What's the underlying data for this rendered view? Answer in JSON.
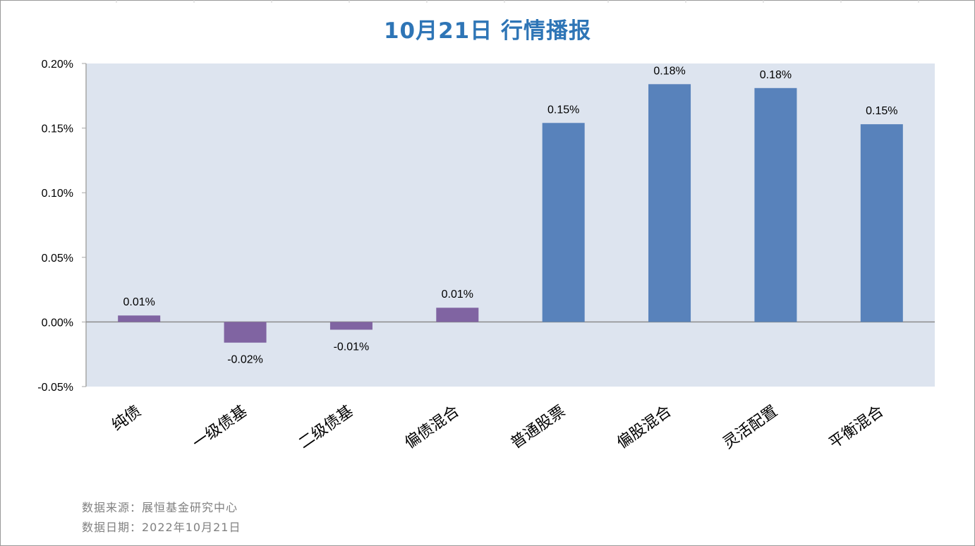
{
  "title": "10月21日  行情播报",
  "footnotes": {
    "source": "数据来源：展恒基金研究中心",
    "date": "数据日期：2022年10月21日"
  },
  "colors": {
    "title": "#2e75b6",
    "plot_background": "#dde4ef",
    "positive_bond_bar": "#8064a2",
    "equity_bar": "#5882bb",
    "axis": "#a6a6a6"
  },
  "chart_data": {
    "type": "bar",
    "categories": [
      "纯债",
      "一级债基",
      "二级债基",
      "偏债混合",
      "普通股票",
      "偏股混合",
      "灵活配置",
      "平衡混合"
    ],
    "values": [
      0.005,
      -0.016,
      -0.006,
      0.011,
      0.154,
      0.184,
      0.181,
      0.153
    ],
    "data_labels": [
      "0.01%",
      "-0.02%",
      "-0.01%",
      "0.01%",
      "0.15%",
      "0.18%",
      "0.18%",
      "0.15%"
    ],
    "bar_colors": [
      "#8064a2",
      "#8064a2",
      "#8064a2",
      "#8064a2",
      "#5882bb",
      "#5882bb",
      "#5882bb",
      "#5882bb"
    ],
    "yticks": [
      0.2,
      0.15,
      0.1,
      0.05,
      0.0,
      -0.05
    ],
    "ytick_labels": [
      "0.20%",
      "0.15%",
      "0.10%",
      "0.05%",
      "0.00%",
      "-0.05%"
    ],
    "ylim": [
      -0.05,
      0.2
    ],
    "grid": false,
    "legend": "none",
    "category_label_rotation": "diagonal"
  }
}
